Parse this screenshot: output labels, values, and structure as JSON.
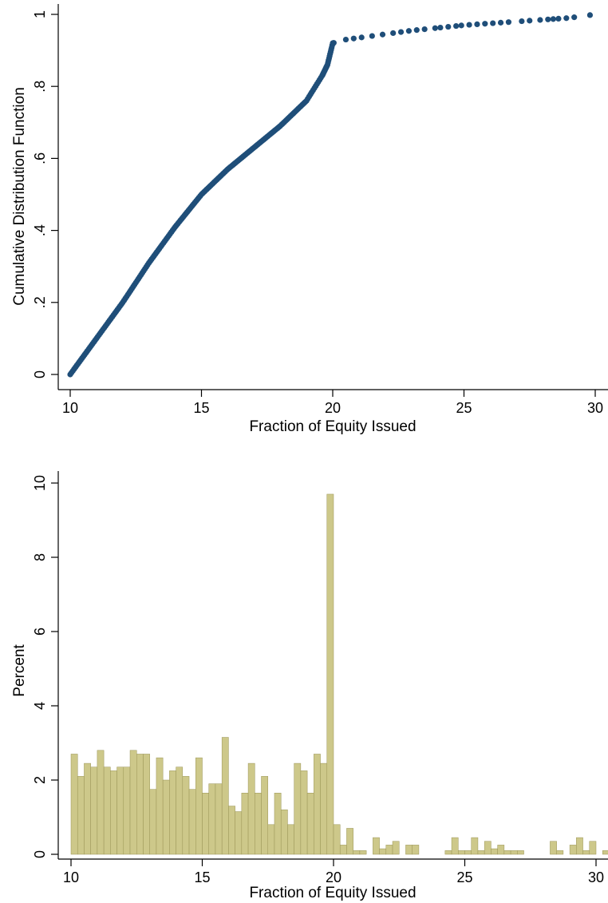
{
  "chart_data": [
    {
      "type": "scatter",
      "title": "",
      "xlabel": "Fraction of Equity Issued",
      "ylabel": "Cumulative Distribution Function",
      "xlim": [
        10,
        30
      ],
      "ylim": [
        0,
        1
      ],
      "xticks": [
        10,
        15,
        20,
        25,
        30
      ],
      "xtick_labels": [
        "10",
        "15",
        "20",
        "25",
        "30"
      ],
      "yticks": [
        0,
        0.2,
        0.4,
        0.6,
        0.8,
        1
      ],
      "ytick_labels": [
        "0",
        ".2",
        ".4",
        ".6",
        ".8",
        "1"
      ],
      "grid": false,
      "legend": "none",
      "marker_color": "#1f4e79",
      "curve_anchors": [
        [
          10.0,
          0.0
        ],
        [
          11.0,
          0.1
        ],
        [
          12.0,
          0.2
        ],
        [
          13.0,
          0.31
        ],
        [
          14.0,
          0.41
        ],
        [
          15.0,
          0.5
        ],
        [
          16.0,
          0.57
        ],
        [
          17.0,
          0.63
        ],
        [
          18.0,
          0.69
        ],
        [
          19.0,
          0.76
        ],
        [
          19.6,
          0.83
        ],
        [
          19.8,
          0.86
        ],
        [
          20.0,
          0.92
        ],
        [
          20.5,
          0.93
        ],
        [
          21.5,
          0.94
        ],
        [
          23.0,
          0.955
        ],
        [
          25.0,
          0.97
        ],
        [
          27.0,
          0.98
        ],
        [
          29.0,
          0.99
        ],
        [
          30.0,
          1.0
        ]
      ],
      "upper_tail_x": [
        20.5,
        20.8,
        21.1,
        21.5,
        21.9,
        22.3,
        22.6,
        22.9,
        23.2,
        23.5,
        23.9,
        24.1,
        24.4,
        24.7,
        24.9,
        25.2,
        25.5,
        25.8,
        26.1,
        26.4,
        26.7,
        27.2,
        27.5,
        27.9,
        28.2,
        28.4,
        28.6,
        28.9,
        29.2,
        29.8
      ]
    },
    {
      "type": "bar",
      "title": "",
      "xlabel": "Fraction of Equity Issued",
      "ylabel": "Percent",
      "xlim": [
        10,
        30
      ],
      "ylim": [
        0,
        10
      ],
      "xticks": [
        10,
        15,
        20,
        25,
        30
      ],
      "xtick_labels": [
        "10",
        "15",
        "20",
        "25",
        "30"
      ],
      "yticks": [
        0,
        2,
        4,
        6,
        8,
        10
      ],
      "ytick_labels": [
        "0",
        "2",
        "4",
        "6",
        "8",
        "10"
      ],
      "grid": false,
      "legend": "none",
      "bar_fill": "#cdc88a",
      "bar_stroke": "#9a9456",
      "bin_width": 0.25,
      "bin_start": 10,
      "values": [
        2.7,
        2.1,
        2.45,
        2.35,
        2.8,
        2.35,
        2.25,
        2.35,
        2.35,
        2.8,
        2.7,
        2.7,
        1.75,
        2.6,
        2.0,
        2.25,
        2.35,
        2.1,
        1.75,
        2.6,
        1.65,
        1.9,
        1.9,
        3.15,
        1.3,
        1.15,
        1.65,
        2.45,
        1.65,
        2.1,
        0.8,
        1.65,
        1.2,
        0.8,
        2.45,
        2.25,
        1.65,
        2.7,
        2.45,
        9.7,
        0.8,
        0.25,
        0.7,
        0.1,
        0.1,
        0,
        0.45,
        0.15,
        0.25,
        0.35,
        0,
        0.25,
        0.25,
        0,
        0,
        0,
        0,
        0.1,
        0.45,
        0.1,
        0.1,
        0.45,
        0.1,
        0.35,
        0.15,
        0.25,
        0.1,
        0.1,
        0.1,
        0,
        0,
        0,
        0,
        0.35,
        0.1,
        0,
        0.25,
        0.45,
        0.1,
        0.35,
        0,
        0.1,
        0.1,
        0.1
      ]
    }
  ]
}
